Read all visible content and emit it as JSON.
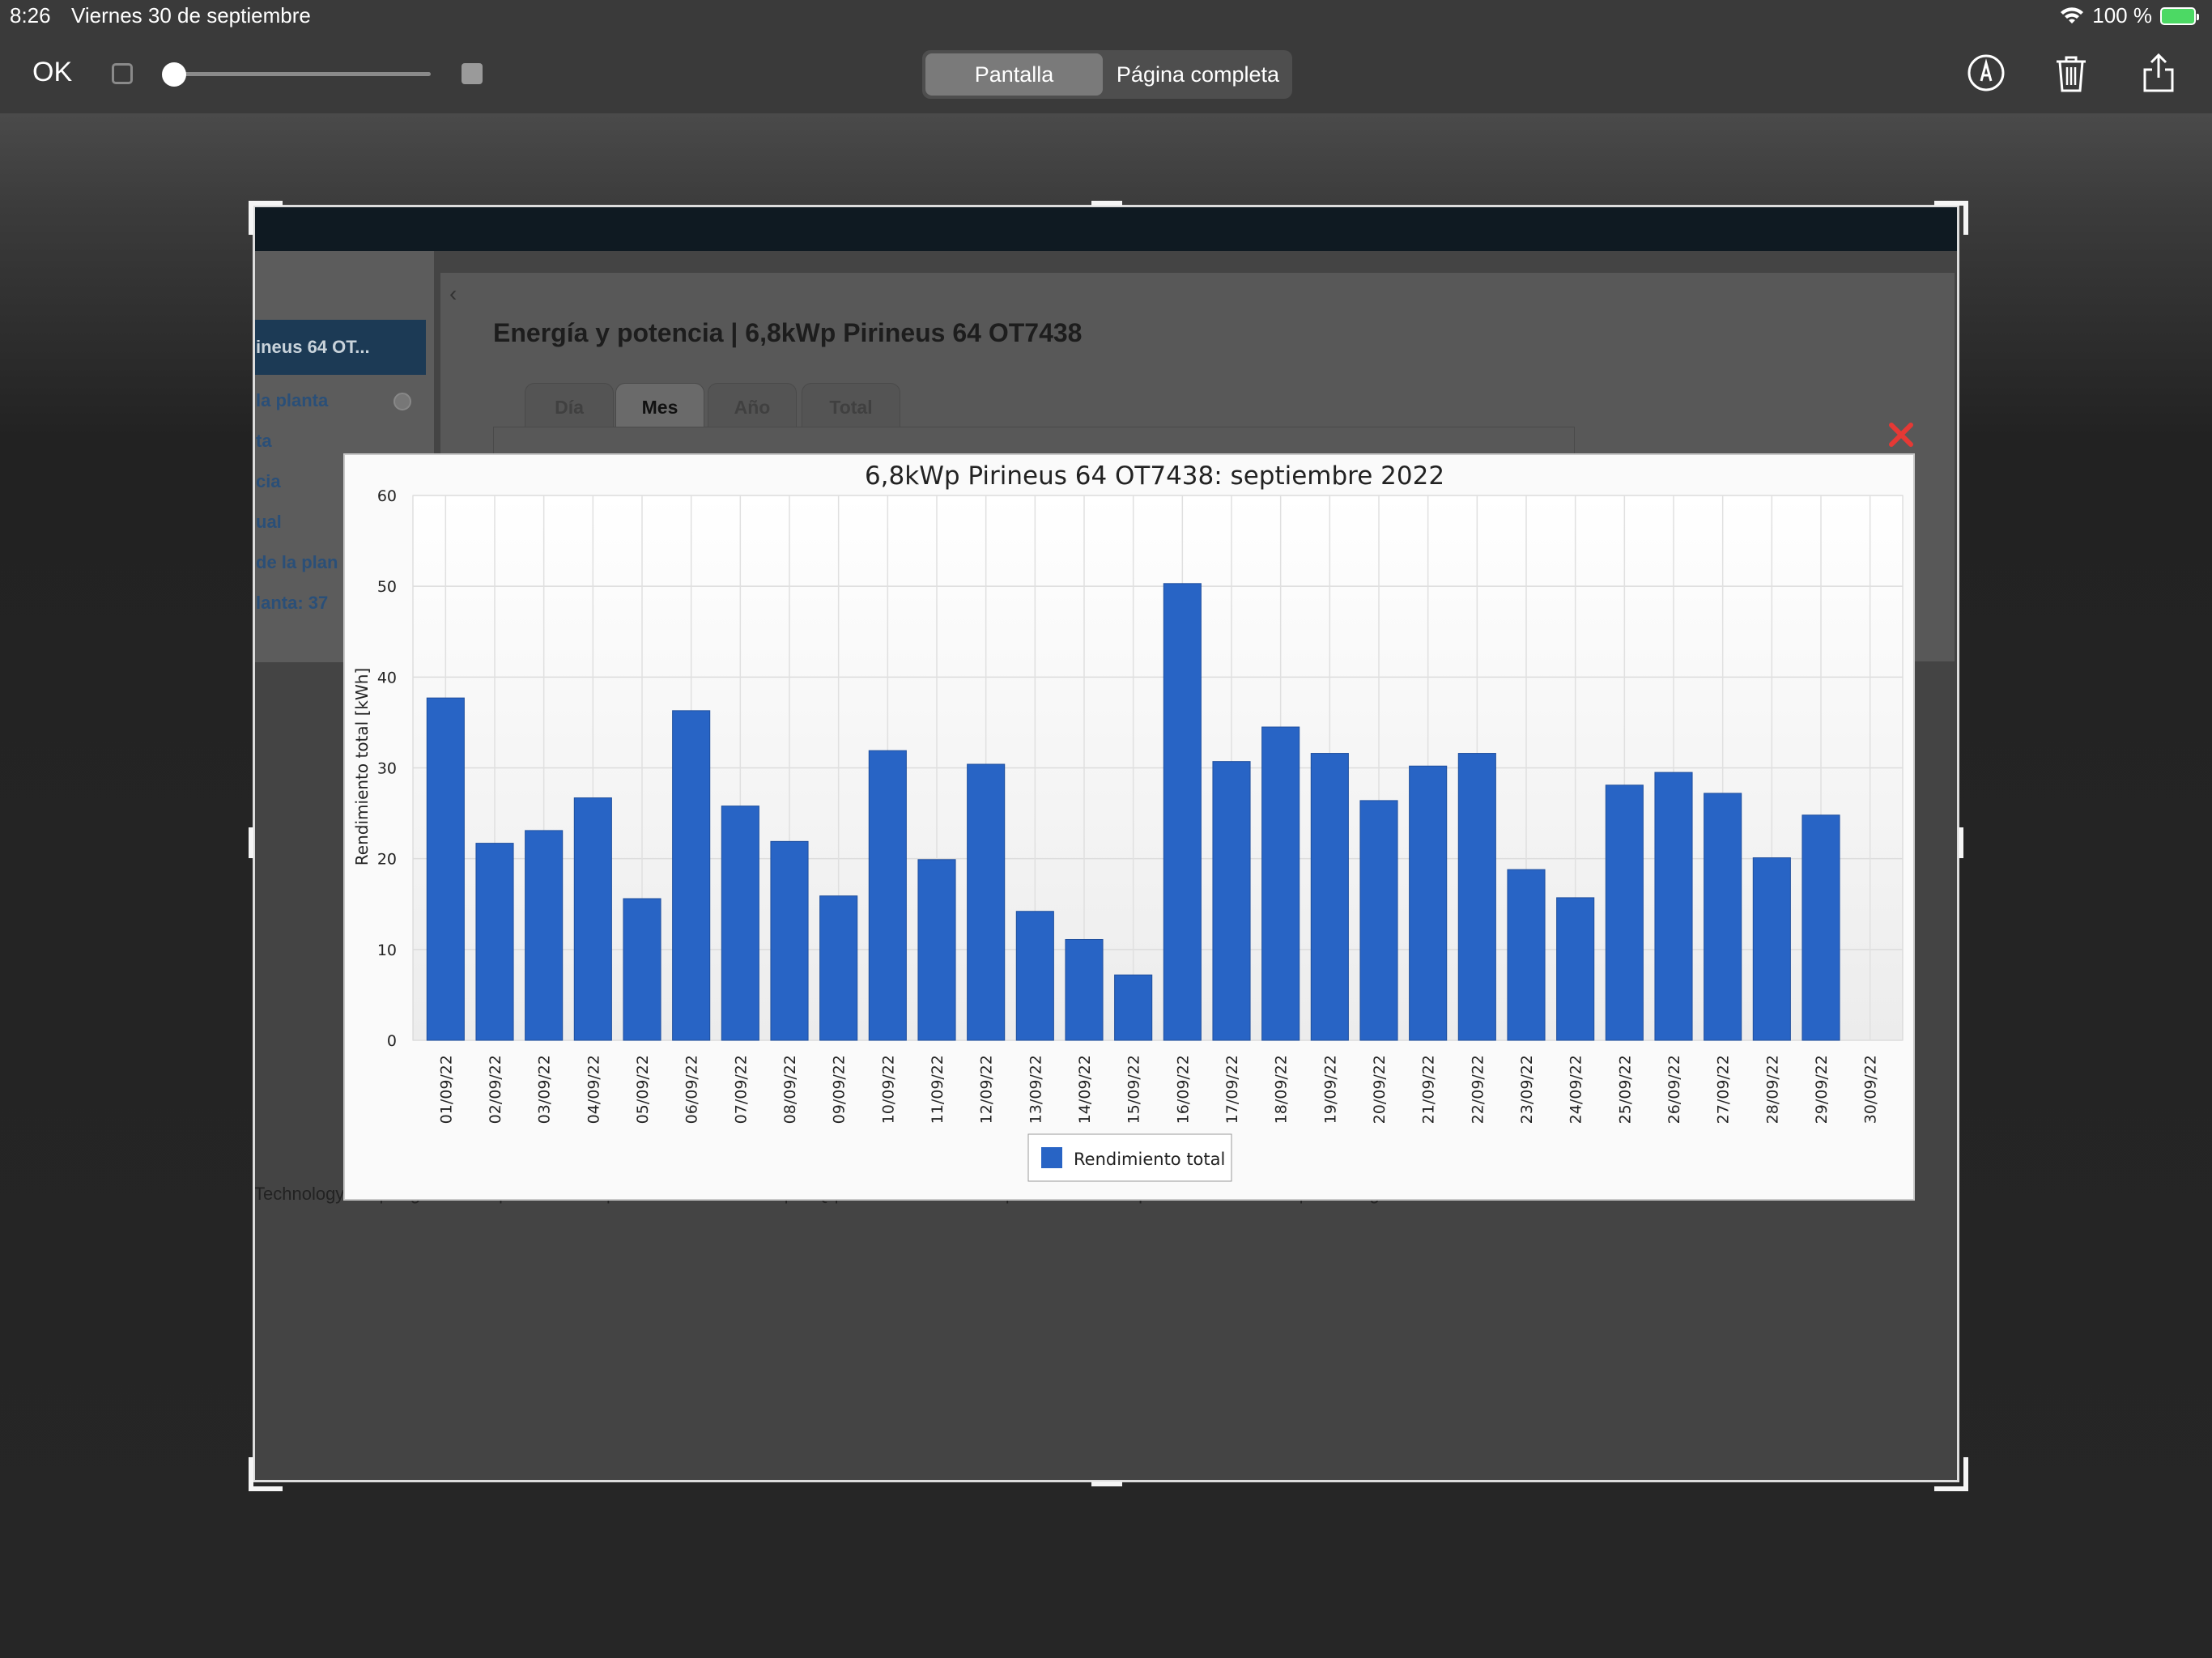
{
  "status_bar": {
    "time": "8:26",
    "date": "Viernes 30 de septiembre",
    "battery": "100 %"
  },
  "toolbar": {
    "ok_label": "OK",
    "zoom_level": 0.0,
    "seg_screen": "Pantalla",
    "seg_full_page": "Página completa",
    "icons": [
      "markup-icon",
      "trash-icon",
      "share-icon"
    ]
  },
  "portal": {
    "sidebar_plant": "ineus 64 OT...",
    "sidebar_links": [
      " la planta",
      "ta",
      "cia",
      "ual",
      "de la plan",
      "lanta: 37"
    ],
    "page_title": "Energía y potencia | 6,8kWp Pirineus 64 OT7438",
    "tabs": [
      "Día",
      "Mes",
      "Año",
      "Total"
    ],
    "active_tab": "Mes",
    "footer": "Technology AG   |   Página inicial   |   Información   |   Instrucciones de uso   |   FAQ   |   Condiciones de uso   |   Declaración de protección de datos   |   Aviso legal"
  },
  "colors": {
    "bar": "#2864c5",
    "close": "#e53935"
  },
  "chart_data": {
    "type": "bar",
    "title": "6,8kWp Pirineus 64 OT7438: septiembre 2022",
    "ylabel": "Rendimiento total [kWh]",
    "xlabel": "",
    "ylim": [
      0,
      60
    ],
    "yticks": [
      0,
      10,
      20,
      30,
      40,
      50,
      60
    ],
    "grid": true,
    "legend_position": "bottom",
    "categories": [
      "01/09/22",
      "02/09/22",
      "03/09/22",
      "04/09/22",
      "05/09/22",
      "06/09/22",
      "07/09/22",
      "08/09/22",
      "09/09/22",
      "10/09/22",
      "11/09/22",
      "12/09/22",
      "13/09/22",
      "14/09/22",
      "15/09/22",
      "16/09/22",
      "17/09/22",
      "18/09/22",
      "19/09/22",
      "20/09/22",
      "21/09/22",
      "22/09/22",
      "23/09/22",
      "24/09/22",
      "25/09/22",
      "26/09/22",
      "27/09/22",
      "28/09/22",
      "29/09/22",
      "30/09/22"
    ],
    "series": [
      {
        "name": "Rendimiento total",
        "values": [
          37.7,
          21.7,
          23.1,
          26.7,
          15.6,
          36.3,
          25.8,
          21.9,
          15.9,
          31.9,
          19.9,
          30.4,
          14.2,
          11.1,
          7.2,
          50.3,
          30.7,
          34.5,
          31.6,
          26.4,
          30.2,
          31.6,
          18.8,
          15.7,
          28.1,
          29.5,
          27.2,
          20.1,
          24.8,
          null
        ]
      }
    ]
  }
}
